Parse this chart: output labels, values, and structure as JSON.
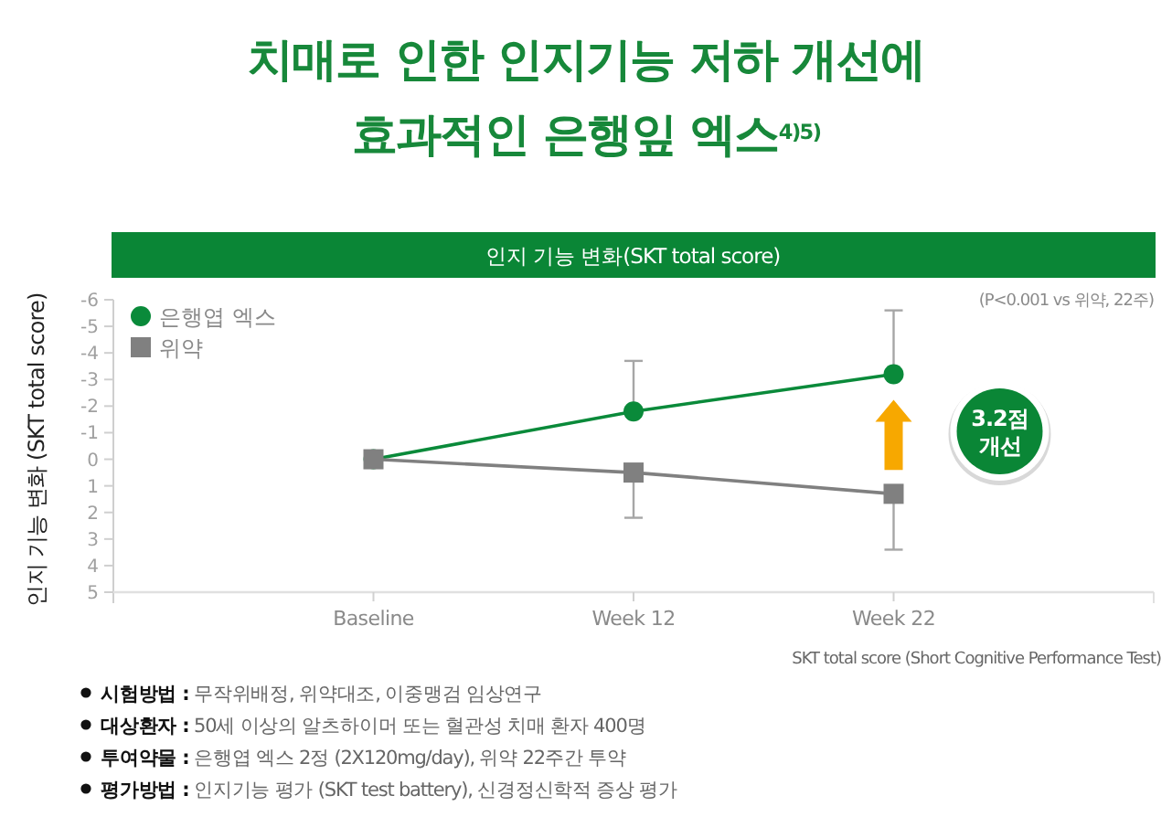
{
  "chart_data": {
    "type": "line",
    "title": "치매로 인한 인지기능 저하 개선에\n효과적인 은행잎 엑스$^{4)5)}$",
    "subtitle": "인지 기능 변화(SKT total score)",
    "ylabel": "인지 기능 변화 (SKT total score)",
    "categories": [
      "Baseline",
      "Week 12",
      "Week 22"
    ],
    "series": [
      {
        "name": "은행엽 엑스",
        "color": "#0a8a3a",
        "marker": "circle",
        "values": [
          0,
          -1.8,
          -3.2
        ],
        "errors": [
          null,
          [
            -3.7,
            -1.8
          ],
          [
            -5.6,
            -3.2
          ]
        ]
      },
      {
        "name": "위약",
        "color": "#808080",
        "marker": "square",
        "values": [
          0,
          0.5,
          1.3
        ],
        "errors": [
          null,
          [
            0.5,
            2.2
          ],
          [
            1.3,
            3.4
          ]
        ]
      }
    ],
    "ylim": [
      5,
      -6
    ],
    "yticks": [
      -6,
      -5,
      -4,
      -3,
      -2,
      -1,
      0,
      1,
      2,
      3,
      4,
      5
    ],
    "legend": "top left",
    "annotations": [
      "(P<0.001 vs 위약, 22주)",
      "3.2점\n개선",
      "SKT total score (Short Cognitive Performance Test)",
      "시험방법 : 무작위배정, 위약대조, 이중맹검 임상연구",
      "대상환자 : 50세 이상의 알츠하이머 또는 혈관성 치매 환자 400명",
      "투여약물 : 은행엽 엑스 2정 (2X120mg/day), 위약 22주간 투약",
      "평가방법 : 인지기능 평가 (SKT test battery), 신경정신학적 증상 평가"
    ]
  }
}
